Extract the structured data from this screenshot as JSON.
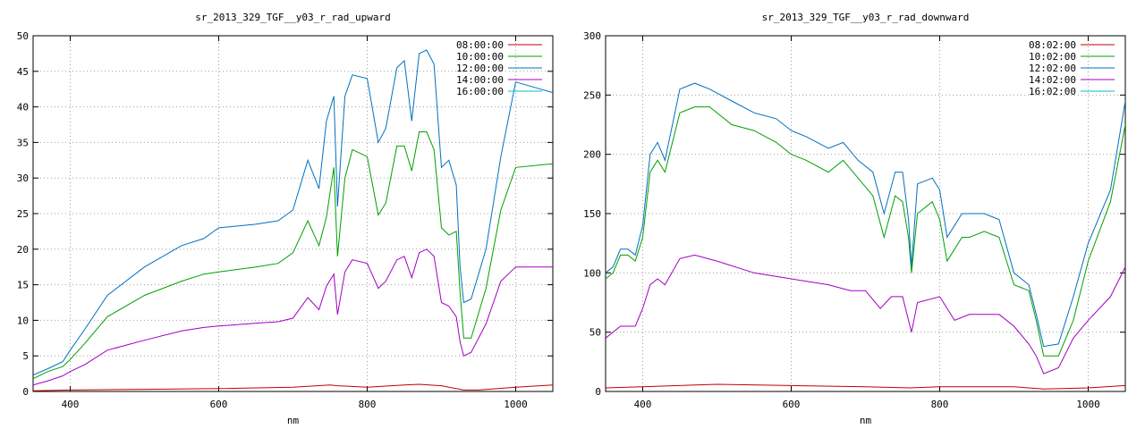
{
  "chart_data": [
    {
      "type": "line",
      "title": "sr_2013_329_TGF__y03_r_rad_upward",
      "xlabel": "nm",
      "ylabel": "",
      "xlim": [
        350,
        1050
      ],
      "ylim": [
        0,
        50
      ],
      "xticks": [
        400,
        600,
        800,
        1000
      ],
      "yticks": [
        0,
        5,
        10,
        15,
        20,
        25,
        30,
        35,
        40,
        45,
        50
      ],
      "grid": true,
      "legend_position": "top-right",
      "series": [
        {
          "name": "08:00:00",
          "color": "#c00000",
          "x": [
            350,
            400,
            500,
            600,
            700,
            750,
            760,
            800,
            850,
            870,
            900,
            930,
            950,
            1000,
            1050
          ],
          "y": [
            0.1,
            0.2,
            0.3,
            0.4,
            0.6,
            0.9,
            0.8,
            0.6,
            0.9,
            1.0,
            0.8,
            0.2,
            0.2,
            0.6,
            0.9
          ]
        },
        {
          "name": "10:00:00",
          "color": "#00a000",
          "x": [
            350,
            370,
            390,
            400,
            420,
            450,
            500,
            550,
            580,
            600,
            650,
            680,
            700,
            720,
            735,
            745,
            755,
            760,
            770,
            780,
            800,
            815,
            825,
            840,
            850,
            860,
            870,
            880,
            890,
            900,
            910,
            920,
            925,
            930,
            940,
            960,
            980,
            1000,
            1050
          ],
          "y": [
            1.8,
            2.8,
            3.5,
            4.5,
            6.8,
            10.5,
            13.5,
            15.5,
            16.5,
            16.8,
            17.5,
            18.0,
            19.5,
            24.0,
            20.5,
            24.5,
            31.5,
            19.0,
            30.0,
            34.0,
            33.0,
            24.8,
            26.5,
            34.5,
            34.5,
            31.0,
            36.5,
            36.5,
            34.0,
            23.0,
            22.0,
            22.5,
            14.0,
            7.5,
            7.5,
            14.5,
            25.5,
            31.5,
            32.0
          ]
        },
        {
          "name": "12:00:00",
          "color": "#0070c0",
          "x": [
            350,
            370,
            390,
            400,
            420,
            450,
            500,
            550,
            580,
            600,
            650,
            680,
            700,
            720,
            735,
            745,
            755,
            760,
            770,
            780,
            800,
            815,
            825,
            840,
            850,
            860,
            870,
            880,
            890,
            900,
            910,
            920,
            925,
            930,
            940,
            960,
            980,
            1000,
            1050
          ],
          "y": [
            2.3,
            3.2,
            4.2,
            5.8,
            8.8,
            13.5,
            17.5,
            20.5,
            21.5,
            23.0,
            23.5,
            24.0,
            25.5,
            32.5,
            28.5,
            38.0,
            41.5,
            26.0,
            41.5,
            44.5,
            44.0,
            35.0,
            37.0,
            45.5,
            46.5,
            38.0,
            47.5,
            48.0,
            46.0,
            31.5,
            32.5,
            29.0,
            17.5,
            12.5,
            13.0,
            20.0,
            33.0,
            43.5,
            42.0
          ]
        },
        {
          "name": "14:00:00",
          "color": "#a000c0",
          "x": [
            350,
            370,
            390,
            400,
            420,
            450,
            500,
            550,
            580,
            600,
            650,
            680,
            700,
            720,
            735,
            745,
            755,
            760,
            770,
            780,
            800,
            815,
            825,
            840,
            850,
            860,
            870,
            880,
            890,
            900,
            910,
            920,
            925,
            930,
            940,
            960,
            980,
            1000,
            1050
          ],
          "y": [
            0.9,
            1.5,
            2.2,
            2.8,
            3.8,
            5.8,
            7.2,
            8.5,
            9.0,
            9.2,
            9.6,
            9.8,
            10.3,
            13.2,
            11.5,
            14.8,
            16.5,
            10.8,
            16.8,
            18.5,
            18.0,
            14.5,
            15.5,
            18.5,
            19.0,
            16.0,
            19.5,
            20.0,
            19.0,
            12.5,
            12.0,
            10.5,
            7.0,
            5.0,
            5.5,
            9.5,
            15.5,
            17.5,
            17.5
          ]
        },
        {
          "name": "16:00:00",
          "color": "#00c0c0",
          "x": [],
          "y": []
        }
      ]
    },
    {
      "type": "line",
      "title": "sr_2013_329_TGF__y03_r_rad_downward",
      "xlabel": "nm",
      "ylabel": "",
      "xlim": [
        350,
        1050
      ],
      "ylim": [
        0,
        300
      ],
      "xticks": [
        400,
        600,
        800,
        1000
      ],
      "yticks": [
        0,
        50,
        100,
        150,
        200,
        250,
        300
      ],
      "grid": true,
      "legend_position": "top-right",
      "series": [
        {
          "name": "08:02:00",
          "color": "#c00000",
          "x": [
            350,
            400,
            500,
            600,
            700,
            760,
            800,
            900,
            940,
            1000,
            1050
          ],
          "y": [
            3,
            4,
            6,
            5,
            4,
            3,
            4,
            4,
            2,
            3,
            5
          ]
        },
        {
          "name": "10:02:00",
          "color": "#00a000",
          "x": [
            350,
            360,
            370,
            380,
            390,
            400,
            410,
            420,
            430,
            450,
            470,
            490,
            520,
            550,
            580,
            600,
            620,
            650,
            670,
            690,
            710,
            725,
            740,
            750,
            758,
            762,
            770,
            790,
            800,
            810,
            820,
            830,
            840,
            860,
            880,
            900,
            920,
            930,
            940,
            960,
            980,
            1000,
            1030,
            1050
          ],
          "y": [
            95,
            100,
            115,
            115,
            110,
            130,
            185,
            195,
            185,
            235,
            240,
            240,
            225,
            220,
            210,
            200,
            195,
            185,
            195,
            180,
            165,
            130,
            165,
            160,
            130,
            100,
            150,
            160,
            145,
            110,
            120,
            130,
            130,
            135,
            130,
            90,
            85,
            60,
            30,
            30,
            60,
            110,
            160,
            225
          ]
        },
        {
          "name": "12:02:00",
          "color": "#0070c0",
          "x": [
            350,
            360,
            370,
            380,
            390,
            400,
            410,
            420,
            430,
            450,
            470,
            490,
            520,
            550,
            580,
            600,
            620,
            650,
            670,
            690,
            710,
            725,
            740,
            750,
            758,
            762,
            770,
            790,
            800,
            810,
            820,
            830,
            840,
            860,
            880,
            900,
            920,
            930,
            940,
            960,
            980,
            1000,
            1030,
            1050
          ],
          "y": [
            100,
            105,
            120,
            120,
            115,
            140,
            200,
            210,
            195,
            255,
            260,
            255,
            245,
            235,
            230,
            220,
            215,
            205,
            210,
            195,
            185,
            150,
            185,
            185,
            145,
            105,
            175,
            180,
            170,
            130,
            140,
            150,
            150,
            150,
            145,
            100,
            90,
            65,
            38,
            40,
            80,
            125,
            170,
            245
          ]
        },
        {
          "name": "14:02:00",
          "color": "#a000c0",
          "x": [
            350,
            370,
            390,
            400,
            410,
            420,
            430,
            450,
            470,
            500,
            550,
            600,
            650,
            680,
            700,
            720,
            735,
            750,
            758,
            762,
            770,
            800,
            820,
            840,
            860,
            880,
            900,
            920,
            930,
            940,
            960,
            980,
            1000,
            1030,
            1050
          ],
          "y": [
            45,
            55,
            55,
            70,
            90,
            95,
            90,
            112,
            115,
            110,
            100,
            95,
            90,
            85,
            85,
            70,
            80,
            80,
            60,
            50,
            75,
            80,
            60,
            65,
            65,
            65,
            55,
            40,
            30,
            15,
            20,
            45,
            60,
            80,
            105
          ]
        },
        {
          "name": "16:02:00",
          "color": "#00c0c0",
          "x": [],
          "y": []
        }
      ]
    }
  ]
}
